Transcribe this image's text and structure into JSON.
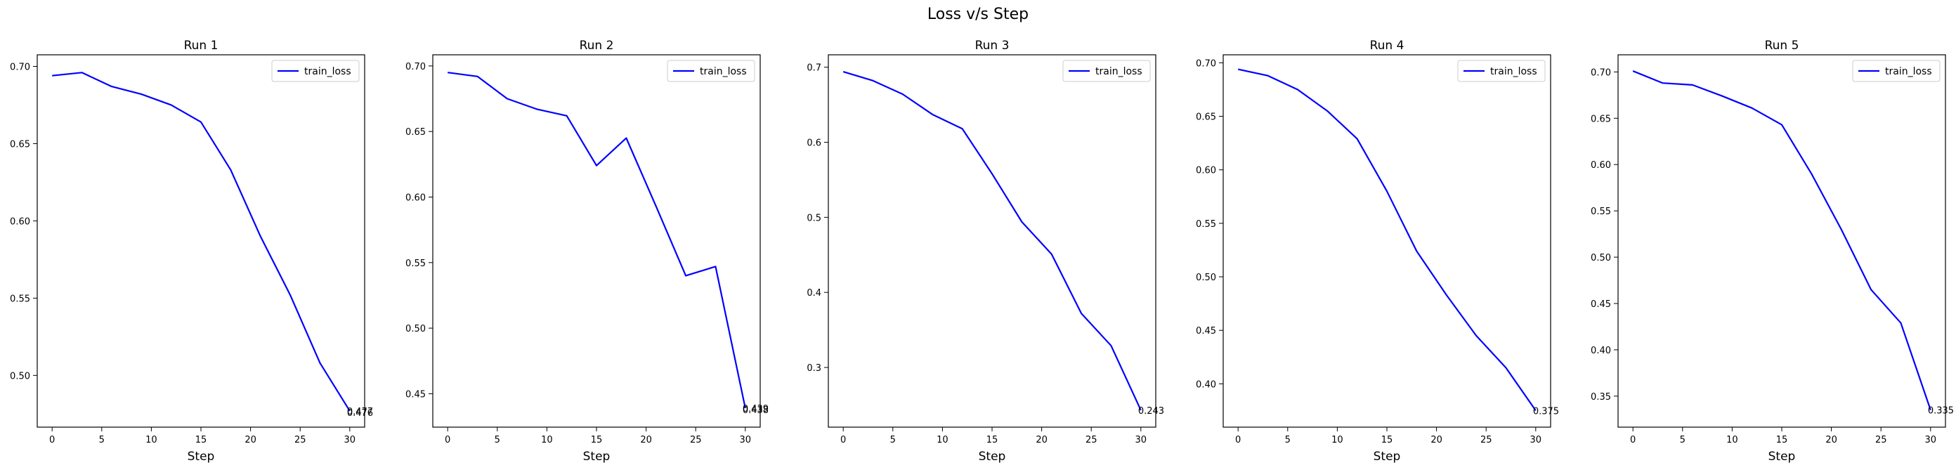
{
  "figure": {
    "suptitle": "Loss v/s Step"
  },
  "chart_data": [
    {
      "type": "line",
      "title": "Run 1",
      "xlabel": "Step",
      "ylabel": "",
      "legend": "top-right",
      "xlim": [
        -1.5,
        31.5
      ],
      "ylim": [
        0.4665,
        0.7075
      ],
      "xticks": [
        0,
        5,
        10,
        15,
        20,
        25,
        30
      ],
      "xtick_labels": [
        "0",
        "5",
        "10",
        "15",
        "20",
        "25",
        "30"
      ],
      "yticks": [
        0.5,
        0.55,
        0.6,
        0.65,
        0.7
      ],
      "ytick_labels": [
        "0.50",
        "0.55",
        "0.60",
        "0.65",
        "0.70"
      ],
      "series": [
        {
          "name": "train_loss",
          "color": "#0000ff",
          "x": [
            0,
            3,
            6,
            9,
            12,
            15,
            18,
            21,
            24,
            27,
            30
          ],
          "y": [
            0.694,
            0.696,
            0.687,
            0.682,
            0.675,
            0.664,
            0.633,
            0.59,
            0.552,
            0.508,
            0.477
          ]
        }
      ],
      "annotations": [
        {
          "x": 30,
          "y": 0.477,
          "text": "0.477"
        },
        {
          "x": 30,
          "y": 0.476,
          "text": "0.476"
        }
      ]
    },
    {
      "type": "line",
      "title": "Run 2",
      "xlabel": "Step",
      "ylabel": "",
      "legend": "top-right",
      "xlim": [
        -1.5,
        31.5
      ],
      "ylim": [
        0.4245,
        0.7085
      ],
      "xticks": [
        0,
        5,
        10,
        15,
        20,
        25,
        30
      ],
      "xtick_labels": [
        "0",
        "5",
        "10",
        "15",
        "20",
        "25",
        "30"
      ],
      "yticks": [
        0.45,
        0.5,
        0.55,
        0.6,
        0.65,
        0.7
      ],
      "ytick_labels": [
        "0.45",
        "0.50",
        "0.55",
        "0.60",
        "0.65",
        "0.70"
      ],
      "series": [
        {
          "name": "train_loss",
          "color": "#0000ff",
          "x": [
            0,
            3,
            6,
            9,
            12,
            15,
            18,
            21,
            24,
            27,
            30
          ],
          "y": [
            0.695,
            0.692,
            0.675,
            0.667,
            0.662,
            0.624,
            0.645,
            0.593,
            0.54,
            0.547,
            0.439
          ]
        }
      ],
      "annotations": [
        {
          "x": 30,
          "y": 0.439,
          "text": "0.439"
        },
        {
          "x": 30,
          "y": 0.438,
          "text": "0.438"
        }
      ]
    },
    {
      "type": "line",
      "title": "Run 3",
      "xlabel": "Step",
      "ylabel": "",
      "legend": "top-right",
      "xlim": [
        -1.5,
        31.5
      ],
      "ylim": [
        0.2205,
        0.7165
      ],
      "xticks": [
        0,
        5,
        10,
        15,
        20,
        25,
        30
      ],
      "xtick_labels": [
        "0",
        "5",
        "10",
        "15",
        "20",
        "25",
        "30"
      ],
      "yticks": [
        0.3,
        0.4,
        0.5,
        0.6,
        0.7
      ],
      "ytick_labels": [
        "0.3",
        "0.4",
        "0.5",
        "0.6",
        "0.7"
      ],
      "series": [
        {
          "name": "train_loss",
          "color": "#0000ff",
          "x": [
            0,
            3,
            6,
            9,
            12,
            15,
            18,
            21,
            24,
            27,
            30
          ],
          "y": [
            0.694,
            0.682,
            0.664,
            0.637,
            0.618,
            0.558,
            0.494,
            0.451,
            0.372,
            0.329,
            0.243
          ]
        }
      ],
      "annotations": [
        {
          "x": 30,
          "y": 0.243,
          "text": "0.243"
        }
      ]
    },
    {
      "type": "line",
      "title": "Run 4",
      "xlabel": "Step",
      "ylabel": "",
      "legend": "top-right",
      "xlim": [
        -1.5,
        31.5
      ],
      "ylim": [
        0.3595,
        0.7075
      ],
      "xticks": [
        0,
        5,
        10,
        15,
        20,
        25,
        30
      ],
      "xtick_labels": [
        "0",
        "5",
        "10",
        "15",
        "20",
        "25",
        "30"
      ],
      "yticks": [
        0.4,
        0.45,
        0.5,
        0.55,
        0.6,
        0.65,
        0.7
      ],
      "ytick_labels": [
        "0.40",
        "0.45",
        "0.50",
        "0.55",
        "0.60",
        "0.65",
        "0.70"
      ],
      "series": [
        {
          "name": "train_loss",
          "color": "#0000ff",
          "x": [
            0,
            3,
            6,
            9,
            12,
            15,
            18,
            21,
            24,
            27,
            30
          ],
          "y": [
            0.694,
            0.688,
            0.675,
            0.655,
            0.629,
            0.58,
            0.524,
            0.483,
            0.445,
            0.415,
            0.375
          ]
        }
      ],
      "annotations": [
        {
          "x": 30,
          "y": 0.375,
          "text": "0.375"
        }
      ]
    },
    {
      "type": "line",
      "title": "Run 5",
      "xlabel": "Step",
      "ylabel": "",
      "legend": "top-right",
      "xlim": [
        -1.5,
        31.5
      ],
      "ylim": [
        0.3165,
        0.7185
      ],
      "xticks": [
        0,
        5,
        10,
        15,
        20,
        25,
        30
      ],
      "xtick_labels": [
        "0",
        "5",
        "10",
        "15",
        "20",
        "25",
        "30"
      ],
      "yticks": [
        0.35,
        0.4,
        0.45,
        0.5,
        0.55,
        0.6,
        0.65,
        0.7
      ],
      "ytick_labels": [
        "0.35",
        "0.40",
        "0.45",
        "0.50",
        "0.55",
        "0.60",
        "0.65",
        "0.70"
      ],
      "series": [
        {
          "name": "train_loss",
          "color": "#0000ff",
          "x": [
            0,
            3,
            6,
            9,
            12,
            15,
            18,
            21,
            24,
            27,
            30
          ],
          "y": [
            0.701,
            0.688,
            0.686,
            0.674,
            0.661,
            0.643,
            0.59,
            0.53,
            0.465,
            0.429,
            0.335
          ]
        }
      ],
      "annotations": [
        {
          "x": 30,
          "y": 0.335,
          "text": "0.335"
        }
      ]
    }
  ]
}
